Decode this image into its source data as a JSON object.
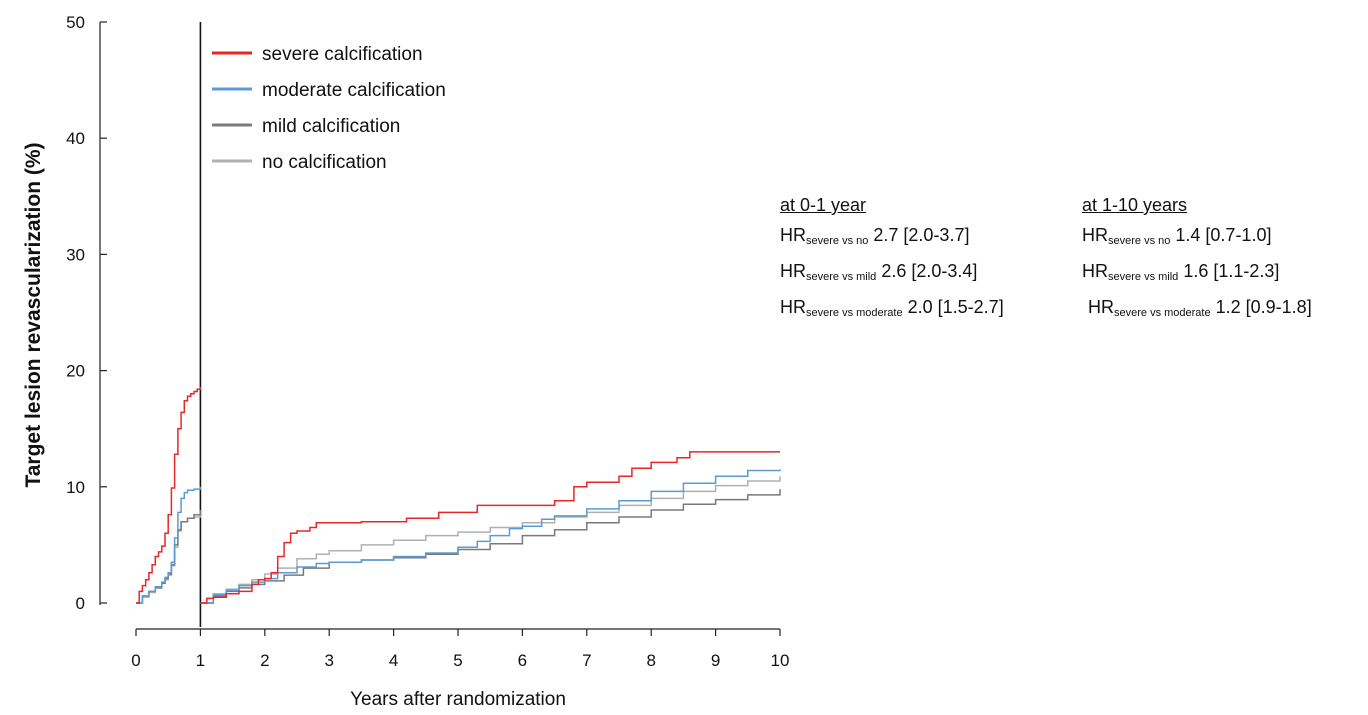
{
  "chart_data": {
    "type": "line",
    "xlabel": "Years after randomization",
    "ylabel": "Target lesion revascularization (%)",
    "xlim": [
      0,
      10
    ],
    "ylim": [
      0,
      50
    ],
    "xticks": [
      "0",
      "1",
      "2",
      "3",
      "4",
      "5",
      "6",
      "7",
      "8",
      "9",
      "10"
    ],
    "yticks": [
      "0",
      "10",
      "20",
      "30",
      "40",
      "50"
    ],
    "landmark_x": 1,
    "legend_position": "top-left",
    "grid": false,
    "series": [
      {
        "name": "severe calcification",
        "color": "#e8272a",
        "segments": [
          [
            [
              0,
              0.0
            ],
            [
              0.05,
              1.0
            ],
            [
              0.1,
              1.5
            ],
            [
              0.15,
              2.0
            ],
            [
              0.2,
              2.6
            ],
            [
              0.25,
              3.3
            ],
            [
              0.3,
              4.0
            ],
            [
              0.35,
              4.4
            ],
            [
              0.4,
              4.9
            ],
            [
              0.45,
              6.0
            ],
            [
              0.5,
              7.6
            ],
            [
              0.55,
              9.9
            ],
            [
              0.6,
              12.8
            ],
            [
              0.65,
              15.0
            ],
            [
              0.7,
              16.4
            ],
            [
              0.75,
              17.4
            ],
            [
              0.8,
              17.8
            ],
            [
              0.85,
              18.0
            ],
            [
              0.9,
              18.2
            ],
            [
              0.95,
              18.4
            ],
            [
              1.0,
              18.6
            ]
          ],
          [
            [
              1.0,
              0.0
            ],
            [
              1.1,
              0.4
            ],
            [
              1.2,
              0.5
            ],
            [
              1.3,
              0.5
            ],
            [
              1.4,
              0.8
            ],
            [
              1.5,
              0.8
            ],
            [
              1.6,
              1.0
            ],
            [
              1.7,
              1.0
            ],
            [
              1.8,
              1.6
            ],
            [
              1.9,
              2.0
            ],
            [
              2.0,
              2.1
            ],
            [
              2.1,
              2.6
            ],
            [
              2.2,
              4.0
            ],
            [
              2.3,
              5.2
            ],
            [
              2.4,
              6.0
            ],
            [
              2.5,
              6.2
            ],
            [
              2.7,
              6.5
            ],
            [
              2.8,
              6.9
            ],
            [
              3.2,
              6.9
            ],
            [
              3.5,
              7.0
            ],
            [
              4.0,
              7.0
            ],
            [
              4.2,
              7.3
            ],
            [
              4.5,
              7.3
            ],
            [
              4.7,
              7.8
            ],
            [
              5.0,
              7.8
            ],
            [
              5.3,
              8.4
            ],
            [
              5.9,
              8.4
            ],
            [
              6.1,
              8.4
            ],
            [
              6.5,
              8.8
            ],
            [
              6.8,
              10.0
            ],
            [
              7.0,
              10.4
            ],
            [
              7.5,
              10.9
            ],
            [
              7.7,
              11.6
            ],
            [
              8.0,
              12.1
            ],
            [
              8.4,
              12.5
            ],
            [
              8.6,
              13.0
            ],
            [
              9.0,
              13.0
            ],
            [
              10.0,
              13.0
            ]
          ]
        ]
      },
      {
        "name": "moderate calcification",
        "color": "#5b9bd5",
        "segments": [
          [
            [
              0,
              0.0
            ],
            [
              0.1,
              0.6
            ],
            [
              0.2,
              1.0
            ],
            [
              0.3,
              1.4
            ],
            [
              0.4,
              1.8
            ],
            [
              0.45,
              2.2
            ],
            [
              0.5,
              2.6
            ],
            [
              0.55,
              3.5
            ],
            [
              0.6,
              5.6
            ],
            [
              0.65,
              7.8
            ],
            [
              0.7,
              9.0
            ],
            [
              0.75,
              9.5
            ],
            [
              0.8,
              9.7
            ],
            [
              0.9,
              9.8
            ],
            [
              1.0,
              10.0
            ]
          ],
          [
            [
              1.0,
              0.0
            ],
            [
              1.2,
              0.7
            ],
            [
              1.4,
              1.1
            ],
            [
              1.6,
              1.5
            ],
            [
              1.8,
              1.8
            ],
            [
              2.0,
              2.1
            ],
            [
              2.2,
              2.6
            ],
            [
              2.5,
              3.1
            ],
            [
              2.8,
              3.4
            ],
            [
              3.0,
              3.5
            ],
            [
              3.5,
              3.7
            ],
            [
              4.0,
              4.0
            ],
            [
              4.5,
              4.3
            ],
            [
              5.0,
              4.8
            ],
            [
              5.3,
              5.3
            ],
            [
              5.5,
              5.8
            ],
            [
              5.8,
              6.4
            ],
            [
              6.0,
              6.6
            ],
            [
              6.3,
              7.2
            ],
            [
              6.5,
              7.5
            ],
            [
              7.0,
              8.1
            ],
            [
              7.5,
              8.8
            ],
            [
              8.0,
              9.6
            ],
            [
              8.5,
              10.3
            ],
            [
              9.0,
              10.9
            ],
            [
              9.5,
              11.4
            ],
            [
              10.0,
              11.5
            ]
          ]
        ]
      },
      {
        "name": "mild calcification",
        "color": "#7a7a7a",
        "segments": [
          [
            [
              0,
              0.0
            ],
            [
              0.1,
              0.6
            ],
            [
              0.2,
              1.0
            ],
            [
              0.3,
              1.3
            ],
            [
              0.4,
              1.7
            ],
            [
              0.45,
              2.1
            ],
            [
              0.5,
              2.5
            ],
            [
              0.55,
              3.3
            ],
            [
              0.6,
              5.0
            ],
            [
              0.65,
              6.3
            ],
            [
              0.7,
              7.0
            ],
            [
              0.8,
              7.3
            ],
            [
              0.9,
              7.6
            ],
            [
              1.0,
              8.0
            ]
          ],
          [
            [
              1.0,
              0.0
            ],
            [
              1.2,
              0.6
            ],
            [
              1.4,
              1.0
            ],
            [
              1.6,
              1.3
            ],
            [
              1.8,
              1.6
            ],
            [
              2.0,
              1.9
            ],
            [
              2.3,
              2.4
            ],
            [
              2.6,
              3.0
            ],
            [
              3.0,
              3.5
            ],
            [
              3.5,
              3.7
            ],
            [
              4.0,
              3.9
            ],
            [
              4.5,
              4.2
            ],
            [
              5.0,
              4.6
            ],
            [
              5.5,
              5.1
            ],
            [
              6.0,
              5.8
            ],
            [
              6.5,
              6.3
            ],
            [
              7.0,
              6.9
            ],
            [
              7.5,
              7.4
            ],
            [
              8.0,
              8.0
            ],
            [
              8.5,
              8.5
            ],
            [
              9.0,
              8.9
            ],
            [
              9.5,
              9.3
            ],
            [
              10.0,
              9.8
            ]
          ]
        ]
      },
      {
        "name": "no calcification",
        "color": "#b0b0b0",
        "segments": [
          [
            [
              0,
              0.0
            ],
            [
              0.1,
              0.5
            ],
            [
              0.2,
              0.9
            ],
            [
              0.3,
              1.3
            ],
            [
              0.4,
              1.7
            ],
            [
              0.45,
              2.0
            ],
            [
              0.5,
              2.4
            ],
            [
              0.55,
              3.2
            ],
            [
              0.6,
              4.8
            ],
            [
              0.65,
              6.2
            ],
            [
              0.7,
              7.0
            ],
            [
              0.8,
              7.3
            ],
            [
              0.9,
              7.4
            ],
            [
              1.0,
              7.6
            ]
          ],
          [
            [
              1.0,
              0.0
            ],
            [
              1.2,
              0.8
            ],
            [
              1.4,
              1.2
            ],
            [
              1.6,
              1.6
            ],
            [
              1.8,
              2.0
            ],
            [
              2.0,
              2.5
            ],
            [
              2.2,
              3.0
            ],
            [
              2.5,
              3.8
            ],
            [
              2.8,
              4.2
            ],
            [
              3.0,
              4.5
            ],
            [
              3.5,
              5.0
            ],
            [
              4.0,
              5.4
            ],
            [
              4.5,
              5.8
            ],
            [
              5.0,
              6.1
            ],
            [
              5.5,
              6.5
            ],
            [
              6.0,
              6.9
            ],
            [
              6.5,
              7.4
            ],
            [
              7.0,
              7.8
            ],
            [
              7.5,
              8.4
            ],
            [
              8.0,
              9.0
            ],
            [
              8.5,
              9.6
            ],
            [
              9.0,
              10.1
            ],
            [
              9.5,
              10.5
            ],
            [
              10.0,
              10.9
            ]
          ]
        ]
      }
    ]
  },
  "hr_panel": [
    {
      "header": "at 0-1 year",
      "rows": [
        {
          "prefix": "HR",
          "sub": "severe vs no",
          "value": "2.7 [2.0-3.7]"
        },
        {
          "prefix": "HR",
          "sub": "severe vs mild",
          "value": "2.6 [2.0-3.4]"
        },
        {
          "prefix": "HR",
          "sub": "severe vs moderate",
          "value": "2.0 [1.5-2.7]"
        }
      ]
    },
    {
      "header": "at 1-10 years",
      "rows": [
        {
          "prefix": "HR",
          "sub": "severe vs no",
          "value": "1.4 [0.7-1.0]"
        },
        {
          "prefix": "HR",
          "sub": "severe vs mild",
          "value": "1.6 [1.1-2.3]"
        },
        {
          "prefix": "HR",
          "sub": "severe vs moderate",
          "value": "1.2 [0.9-1.8]"
        }
      ]
    }
  ]
}
